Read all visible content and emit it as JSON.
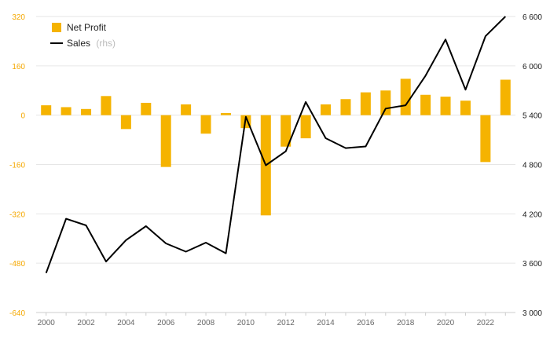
{
  "chart_data": {
    "type": "bar+line",
    "x": [
      "2000",
      "2001",
      "2002",
      "2003",
      "2004",
      "2005",
      "2006",
      "2007",
      "2008",
      "2009",
      "2010",
      "2011",
      "2012",
      "2013",
      "2014",
      "2015",
      "2016",
      "2017",
      "2018",
      "2019",
      "2020",
      "2021",
      "2022",
      "2023"
    ],
    "x_tick_labels": [
      "2000",
      "2002",
      "2004",
      "2006",
      "2008",
      "2010",
      "2012",
      "2014",
      "2016",
      "2018",
      "2020",
      "2022"
    ],
    "series": [
      {
        "name": "Net Profit",
        "type": "bar",
        "axis": "left",
        "color": "#f5b300",
        "values": [
          32,
          26,
          20,
          62,
          -45,
          40,
          -168,
          35,
          -60,
          7,
          -42,
          -325,
          -102,
          -75,
          35,
          52,
          74,
          80,
          118,
          66,
          60,
          47,
          -152,
          115
        ]
      },
      {
        "name": "Sales",
        "name_suffix": "(rhs)",
        "type": "line",
        "axis": "right",
        "color": "#000000",
        "values": [
          3480,
          4140,
          4060,
          3620,
          3880,
          4050,
          3840,
          3740,
          3850,
          3720,
          5380,
          4790,
          4960,
          5560,
          5120,
          5000,
          5020,
          5480,
          5520,
          5880,
          6320,
          5710,
          6360,
          6600
        ]
      }
    ],
    "y_left": {
      "ylim": [
        -640,
        320
      ],
      "ticks": [
        "320",
        "160",
        "0",
        "-160",
        "-320",
        "-480",
        "-640"
      ]
    },
    "y_right": {
      "ylim": [
        3000,
        6600
      ],
      "ticks": [
        "6 600",
        "6 000",
        "5 400",
        "4 800",
        "4 200",
        "3 600",
        "3 000"
      ]
    },
    "grid": true,
    "legend_position": "top-left"
  }
}
